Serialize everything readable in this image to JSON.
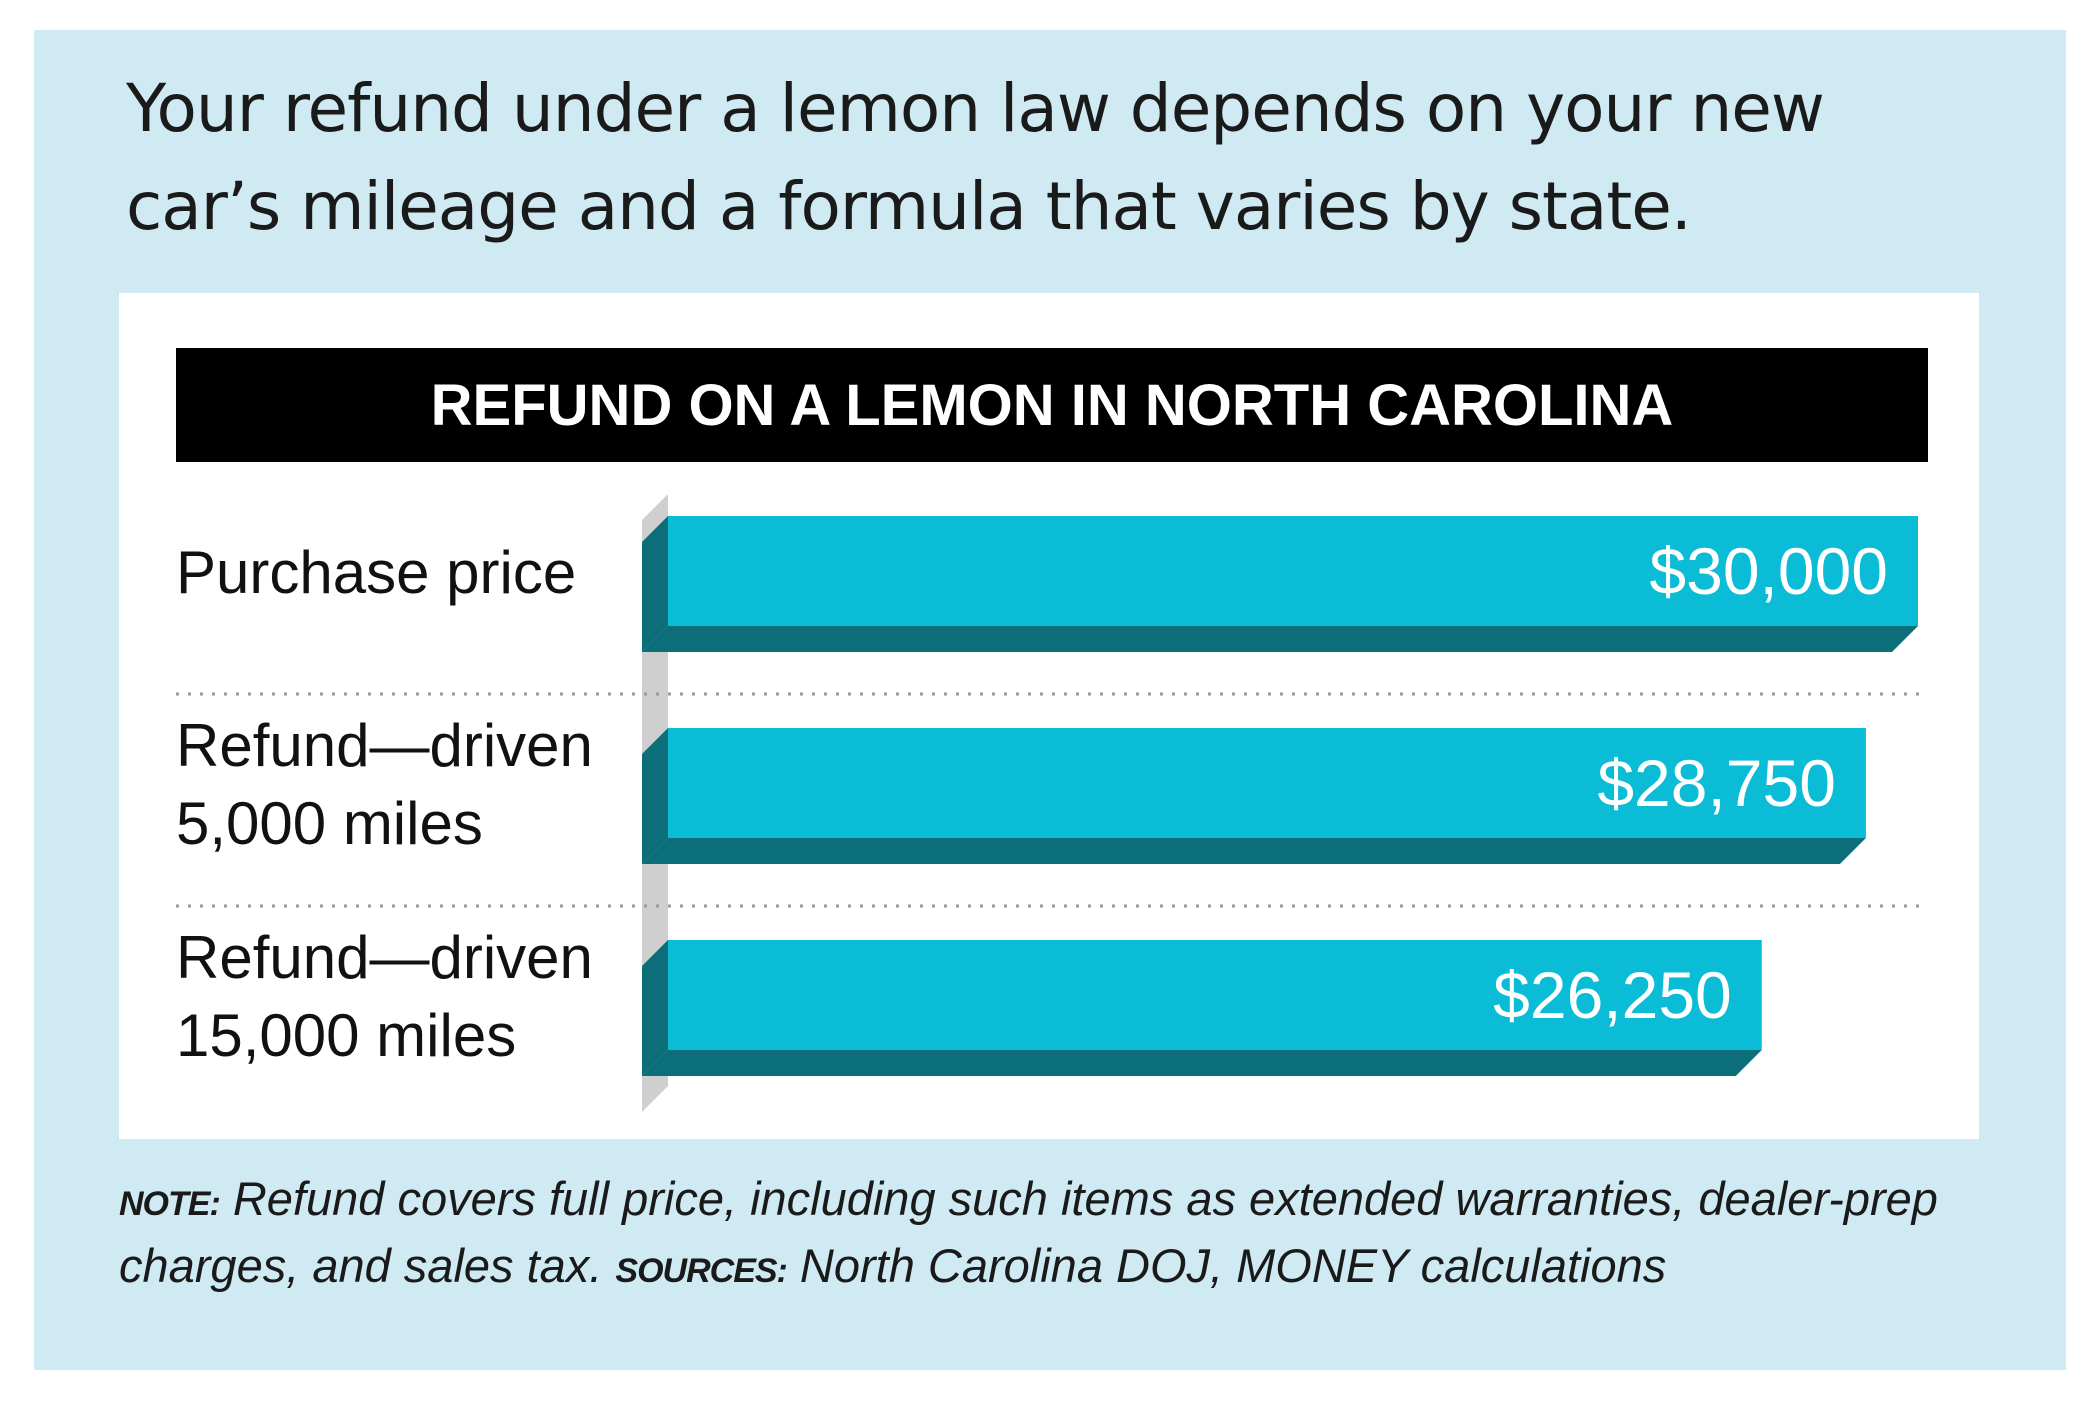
{
  "headline": "Your refund under a lemon law depends on your new car’s mileage and a formula that varies by state.",
  "footnote": {
    "note_tag": "NOTE:",
    "note_text": " Refund covers full price, including such items as extended warranties, dealer-prep charges, and sales tax. ",
    "sources_tag": "SOURCES:",
    "sources_text": " North Carolina DOJ, MONEY calculations"
  },
  "colors": {
    "card_background": "#cfeaf2",
    "bar_face": "#0abcd6",
    "bar_shadow": "#0b6e78",
    "axis_wall": "#cfcfcf",
    "title_bar": "#000000"
  },
  "chart_data": {
    "type": "bar",
    "orientation": "horizontal",
    "title": "REFUND ON A LEMON IN NORTH CAROLINA",
    "categories": [
      [
        "Purchase price"
      ],
      [
        "Refund—driven",
        "5,000 miles"
      ],
      [
        "Refund—driven",
        "15,000 miles"
      ]
    ],
    "values": [
      30000,
      28750,
      26250
    ],
    "value_labels": [
      "$30,000",
      "$28,750",
      "$26,250"
    ],
    "xlim": [
      0,
      30000
    ],
    "grid": false,
    "legend": "none"
  }
}
